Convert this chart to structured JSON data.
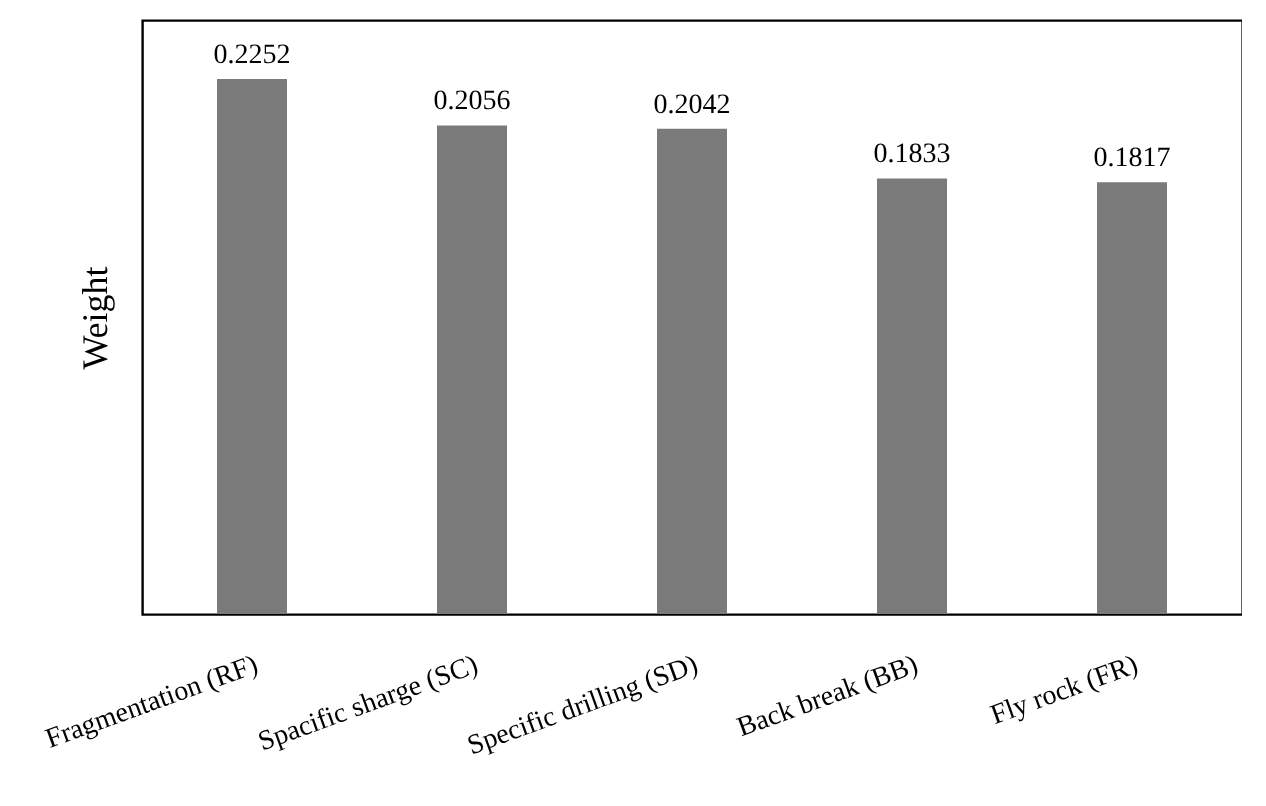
{
  "chart_data": {
    "type": "bar",
    "ylabel": "Weight",
    "categories": [
      "Fragmentation (RF)",
      "Spacific sharge (SC)",
      "Specific drilling (SD)",
      "Back break (BB)",
      "Fly rock (FR)"
    ],
    "values": [
      0.2252,
      0.2056,
      0.2042,
      0.1833,
      0.1817
    ],
    "color": "#7a7a7a",
    "data_labels": true,
    "grid": false,
    "tick_labels": "x"
  }
}
